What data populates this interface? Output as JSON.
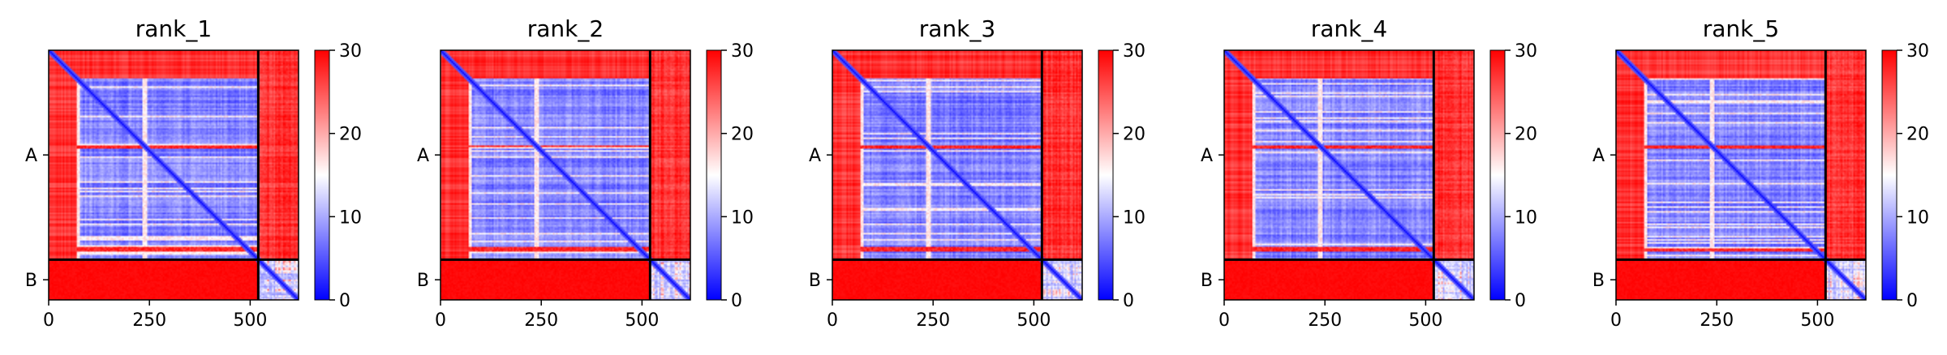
{
  "figure": {
    "panels": [
      {
        "title": "rank_1"
      },
      {
        "title": "rank_2"
      },
      {
        "title": "rank_3"
      },
      {
        "title": "rank_4"
      },
      {
        "title": "rank_5"
      }
    ]
  },
  "chart_data": {
    "type": "heatmap",
    "description_type": "predicted aligned error matrix",
    "panel_titles": [
      "rank_1",
      "rank_2",
      "rank_3",
      "rank_4",
      "rank_5"
    ],
    "x_ticks": [
      0,
      250,
      500
    ],
    "x_tick_labels": [
      "0",
      "250",
      "500"
    ],
    "xlim": [
      0,
      620
    ],
    "y_tick_labels": [
      "A",
      "B"
    ],
    "chains": [
      {
        "name": "A",
        "start": 0,
        "end": 520
      },
      {
        "name": "B",
        "start": 520,
        "end": 620
      }
    ],
    "chain_boundary": 520,
    "total_length": 620,
    "colormap": "bwr",
    "colormap_colors": [
      "#0000ff",
      "#ffffff",
      "#ff0000"
    ],
    "color_range": [
      0,
      30
    ],
    "colorbar_ticks": [
      0,
      10,
      20,
      30
    ],
    "colorbar_tick_labels": [
      "0",
      "10",
      "20",
      "30"
    ],
    "features": {
      "low_error_band_start": 70,
      "vertical_light_stripes": [
        70,
        240
      ],
      "horizontal_high_rows": [
        240,
        495
      ],
      "intra_A_mean": 7,
      "intra_B_mean": 10,
      "inter_chain_mean": 28
    }
  }
}
